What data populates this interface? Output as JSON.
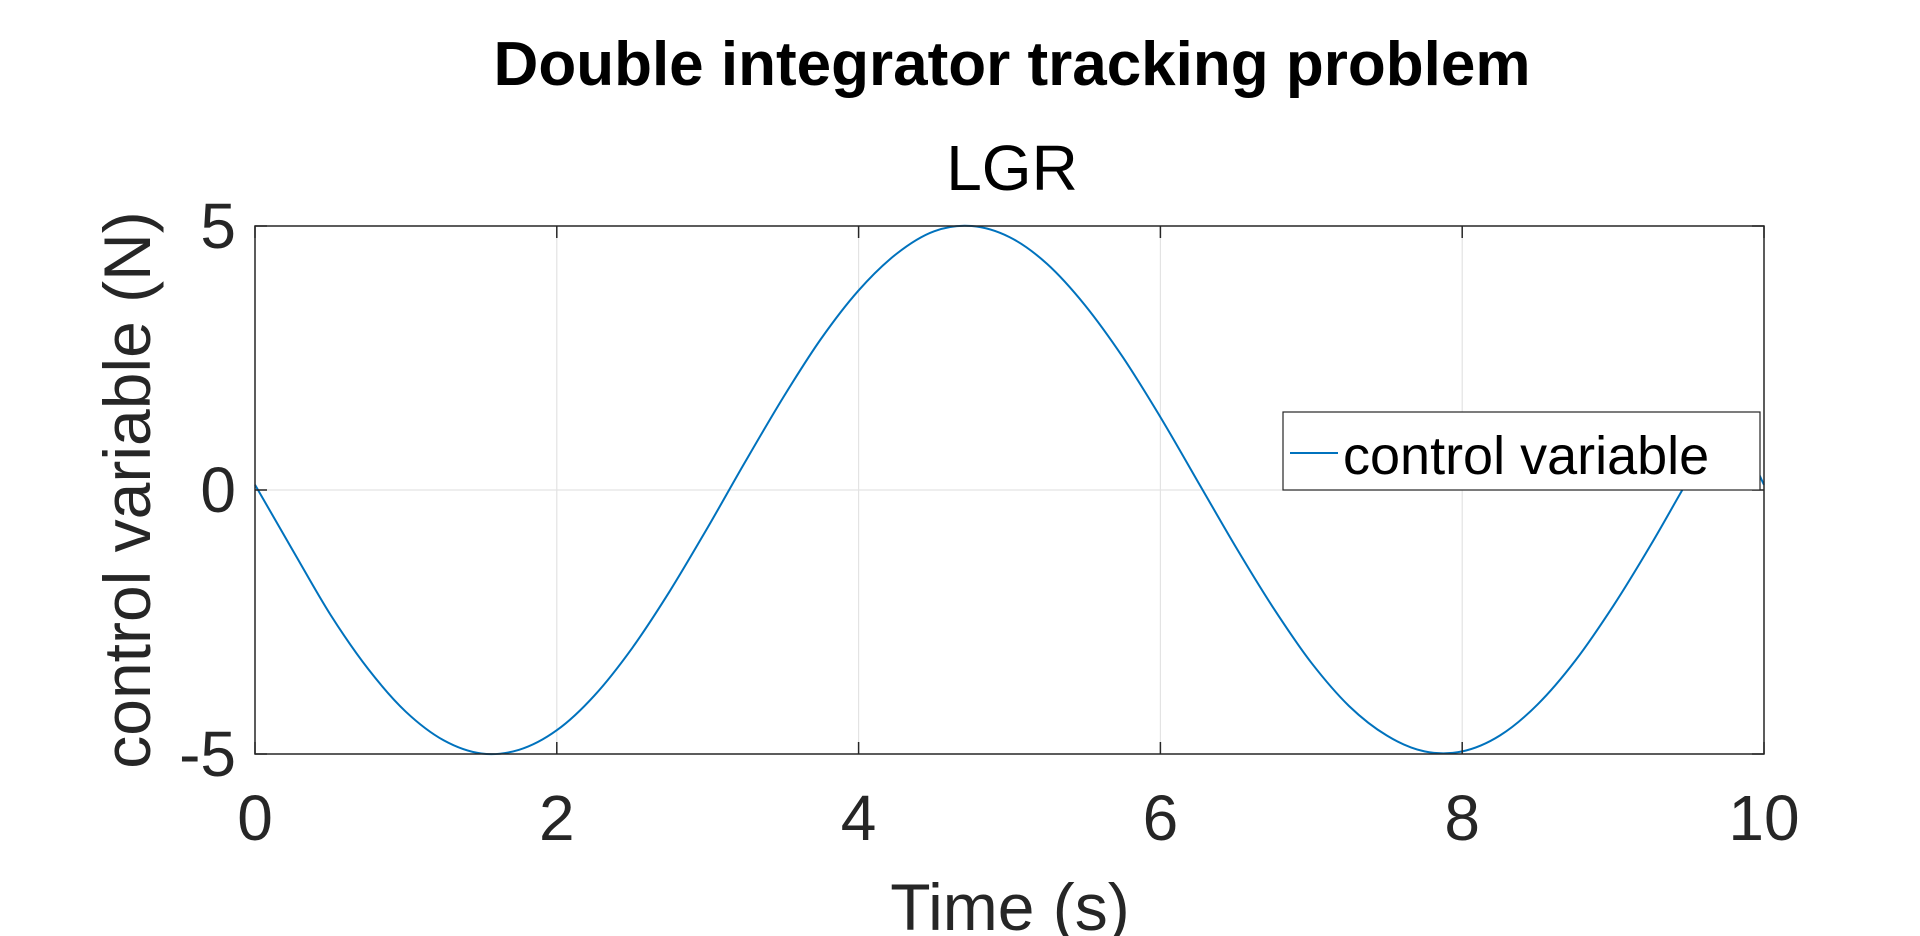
{
  "chart_data": {
    "type": "line",
    "title": "Double integrator tracking problem",
    "subtitle": "LGR",
    "xlabel": "Time (s)",
    "ylabel": "control variable (N)",
    "xlim": [
      0,
      10
    ],
    "ylim": [
      -5,
      5
    ],
    "xticks": [
      0,
      2,
      4,
      6,
      8,
      10
    ],
    "yticks": [
      -5,
      0,
      5
    ],
    "xtick_labels": [
      "0",
      "2",
      "4",
      "6",
      "8",
      "10"
    ],
    "ytick_labels": [
      "-5",
      "0",
      "5"
    ],
    "grid": true,
    "legend": {
      "position": "right",
      "entries": [
        "control variable"
      ]
    },
    "series": [
      {
        "name": "control variable",
        "color": "#0072BD",
        "x": [
          0,
          0.25,
          0.5,
          0.75,
          1.0,
          1.25,
          1.5,
          1.75,
          2.0,
          2.25,
          2.5,
          2.75,
          3.0,
          3.25,
          3.5,
          3.75,
          4.0,
          4.25,
          4.5,
          4.75,
          5.0,
          5.25,
          5.5,
          5.75,
          6.0,
          6.25,
          6.5,
          6.75,
          7.0,
          7.25,
          7.5,
          7.75,
          8.0,
          8.25,
          8.5,
          8.75,
          9.0,
          9.25,
          9.5,
          9.75,
          10.0
        ],
        "y": [
          0.1,
          -1.14,
          -2.36,
          -3.39,
          -4.2,
          -4.74,
          -4.99,
          -4.92,
          -4.55,
          -3.89,
          -2.99,
          -1.91,
          -0.71,
          0.54,
          1.75,
          2.86,
          3.78,
          4.47,
          4.9,
          5.0,
          4.79,
          4.28,
          3.5,
          2.52,
          1.38,
          0.15,
          -1.08,
          -2.24,
          -3.27,
          -4.09,
          -4.65,
          -4.95,
          -4.95,
          -4.65,
          -4.06,
          -3.23,
          -2.2,
          -1.04,
          0.2,
          1.35,
          0.1
        ]
      }
    ]
  }
}
